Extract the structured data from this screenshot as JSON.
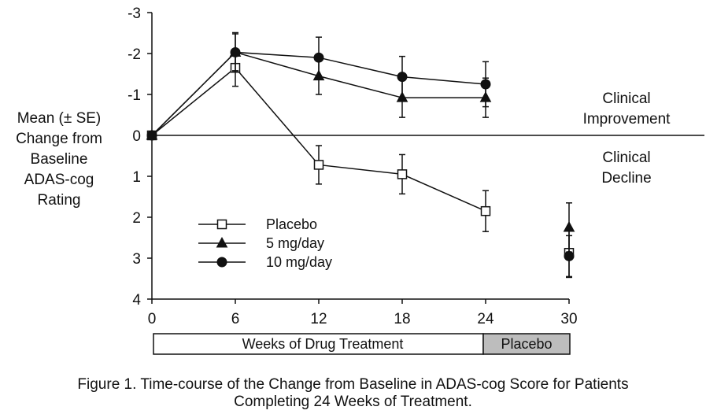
{
  "chart_data": {
    "type": "line",
    "ylabel_lines": [
      "Mean (± SE)",
      "Change from",
      "Baseline",
      "ADAS-cog",
      "Rating"
    ],
    "y_ticks": [
      "-3",
      "-2",
      "-1",
      "0",
      "1",
      "2",
      "3",
      "4"
    ],
    "x_ticks": [
      "0",
      "6",
      "12",
      "18",
      "24",
      "30"
    ],
    "ylim": [
      -3,
      4
    ],
    "xlim": [
      0,
      30
    ],
    "y_inverted": true,
    "reference_line_y": 0,
    "annotations": {
      "improvement": [
        "Clinical",
        "Improvement"
      ],
      "decline": [
        "Clinical",
        "Decline"
      ]
    },
    "phase_bar": {
      "treatment_label": "Weeks of Drug Treatment",
      "placebo_label": "Placebo",
      "treatment_range": [
        0,
        24
      ],
      "placebo_range": [
        24,
        30
      ]
    },
    "legend_position": "lower-left",
    "series": [
      {
        "name": "Placebo",
        "marker": "open-square",
        "x": [
          0,
          6,
          12,
          18,
          24
        ],
        "y": [
          0,
          -1.65,
          0.72,
          0.95,
          1.85
        ],
        "se": [
          0,
          0.45,
          0.47,
          0.48,
          0.5
        ],
        "washout": {
          "x": 30,
          "y": 2.87,
          "se": 0.6
        }
      },
      {
        "name": "5 mg/day",
        "marker": "filled-triangle",
        "x": [
          0,
          6,
          12,
          18,
          24
        ],
        "y": [
          0,
          -2.03,
          -1.45,
          -0.92,
          -0.92
        ],
        "se": [
          0,
          0.45,
          0.45,
          0.48,
          0.48
        ],
        "washout": {
          "x": 30,
          "y": 2.25,
          "se": 0.6
        }
      },
      {
        "name": "10 mg/day",
        "marker": "filled-circle",
        "x": [
          0,
          6,
          12,
          18,
          24
        ],
        "y": [
          0,
          -2.03,
          -1.9,
          -1.43,
          -1.25
        ],
        "se": [
          0,
          0.48,
          0.5,
          0.5,
          0.55
        ],
        "washout": {
          "x": 30,
          "y": 2.95,
          "se": 0.5
        }
      }
    ]
  },
  "caption": {
    "line1": "Figure 1.  Time-course of the Change from Baseline in ADAS-cog Score for Patients",
    "line2": "Completing 24 Weeks of Treatment."
  }
}
